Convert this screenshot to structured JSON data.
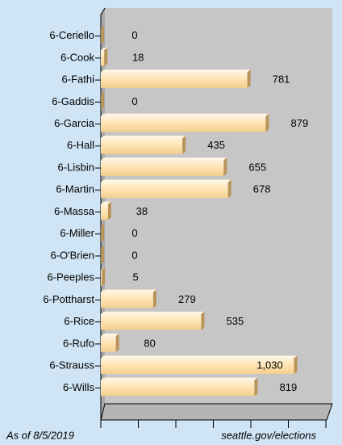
{
  "chart_data": {
    "type": "bar",
    "orientation": "horizontal",
    "categories": [
      "6-Ceriello",
      "6-Cook",
      "6-Fathi",
      "6-Gaddis",
      "6-Garcia",
      "6-Hall",
      "6-Lisbin",
      "6-Martin",
      "6-Massa",
      "6-Miller",
      "6-O'Brien",
      "6-Peeples",
      "6-Pottharst",
      "6-Rice",
      "6-Rufo",
      "6-Strauss",
      "6-Wills"
    ],
    "values": [
      0,
      18,
      781,
      0,
      879,
      435,
      655,
      678,
      38,
      0,
      0,
      5,
      279,
      535,
      80,
      1030,
      819
    ],
    "value_labels": [
      "0",
      "18",
      "781",
      "0",
      "879",
      "435",
      "655",
      "678",
      "38",
      "0",
      "0",
      "5",
      "279",
      "535",
      "80",
      "1,030",
      "819"
    ],
    "color": "#fde2b0",
    "xlim": [
      0,
      1200
    ],
    "xticks": [
      0,
      200,
      400,
      600,
      800,
      1000,
      1200
    ],
    "footer_left": "As of 8/5/2019",
    "footer_right": "seattle.gov/elections"
  }
}
